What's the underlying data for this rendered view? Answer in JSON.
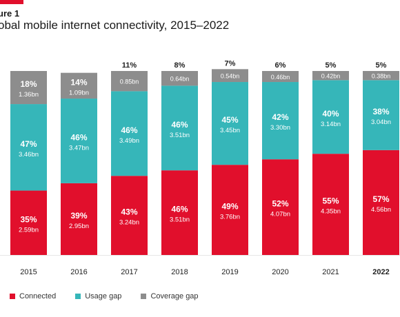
{
  "header": {
    "figure_label": "ure 1",
    "title": "obal mobile internet connectivity, 2015–2022"
  },
  "colors": {
    "connected": "#e10f2c",
    "usage_gap": "#36b6b9",
    "coverage_gap": "#8d8d8d",
    "accent": "#e10f2c"
  },
  "chart_data": {
    "type": "bar",
    "stacked": true,
    "normalized": "percent",
    "title": "obal mobile internet connectivity, 2015–2022",
    "categories": [
      "2015",
      "2016",
      "2017",
      "2018",
      "2019",
      "2020",
      "2021",
      "2022"
    ],
    "highlight_category": "2022",
    "series": [
      {
        "name": "Connected",
        "values": [
          35,
          39,
          43,
          46,
          49,
          52,
          55,
          57
        ],
        "absolute": [
          "2.59bn",
          "2.95bn",
          "3.24bn",
          "3.51bn",
          "3.76bn",
          "4.07bn",
          "4.35bn",
          "4.56bn"
        ]
      },
      {
        "name": "Usage gap",
        "values": [
          47,
          46,
          46,
          46,
          45,
          42,
          40,
          38
        ],
        "absolute": [
          "3.46bn",
          "3.47bn",
          "3.49bn",
          "3.51bn",
          "3.45bn",
          "3.30bn",
          "3.14bn",
          "3.04bn"
        ]
      },
      {
        "name": "Coverage gap",
        "values": [
          18,
          14,
          11,
          8,
          7,
          6,
          5,
          5
        ],
        "absolute": [
          "1.36bn",
          "1.09bn",
          "0.85bn",
          "0.64bn",
          "0.54bn",
          "0.46bn",
          "0.42bn",
          "0.38bn"
        ]
      }
    ],
    "legend": [
      "Connected",
      "Usage gap",
      "Coverage gap"
    ],
    "legend_position": "bottom-left",
    "grid": false
  }
}
